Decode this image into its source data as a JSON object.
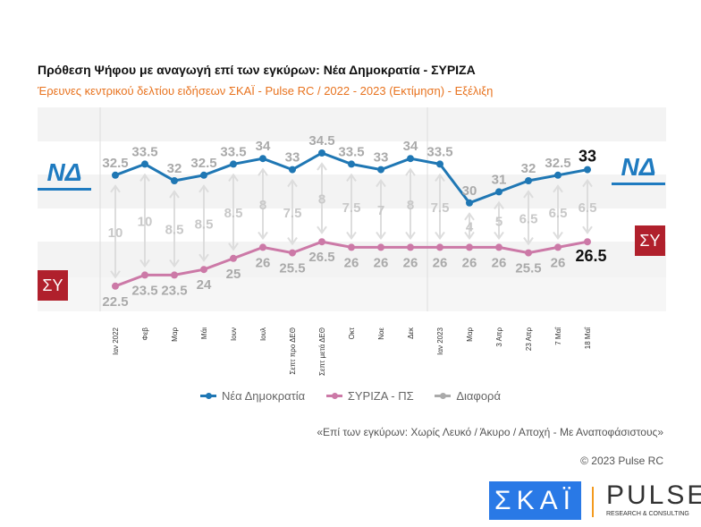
{
  "header": {
    "title": "Πρόθεση Ψήφου με αναγωγή επί των εγκύρων:  Νέα Δημοκρατία - ΣΥΡΙΖΑ",
    "subtitle": "Έρευνες κεντρικού δελτίου ειδήσεων ΣΚΑΪ - Pulse RC / 2022 - 2023   (Εκτίμηση) - Εξέλιξη"
  },
  "chart_data": {
    "type": "line",
    "title": "Πρόθεση Ψήφου με αναγωγή επί των εγκύρων:  Νέα Δημοκρατία - ΣΥΡΙΖΑ",
    "categories": [
      "Ιαν 2022",
      "Φεβ",
      "Μαρ",
      "Μάι",
      "Ιουν",
      "Ιουλ",
      "Σεπτ προ ΔΕΘ",
      "Σεπτ μετά ΔΕΘ",
      "Οκτ",
      "Νοε",
      "Δεκ",
      "Ιαν 2023",
      "Μαρ",
      "3 Απρ",
      "23 Απρ",
      "7 Μαΐ",
      "18 Μαΐ"
    ],
    "series": [
      {
        "name": "Νέα Δημοκρατία",
        "color": "#1f77b4",
        "values": [
          32.5,
          33.5,
          32,
          32.5,
          33.5,
          34,
          33,
          34.5,
          33.5,
          33,
          34,
          33.5,
          30,
          31,
          32,
          32.5,
          33
        ]
      },
      {
        "name": "ΣΥΡΙΖΑ - ΠΣ",
        "color": "#cc79a7",
        "values": [
          22.5,
          23.5,
          23.5,
          24,
          25,
          26,
          25.5,
          26.5,
          26,
          26,
          26,
          26,
          26,
          26,
          25.5,
          26,
          26.5
        ]
      },
      {
        "name": "Διαφορά",
        "color": "#bbbbbb",
        "values": [
          10,
          10,
          8.5,
          8.5,
          8.5,
          8,
          7.5,
          8,
          7.5,
          7,
          8,
          7.5,
          4,
          5,
          6.5,
          6.5,
          6.5
        ]
      }
    ],
    "ylim": [
      20,
      37
    ],
    "legend": "bottom"
  },
  "legend": [
    "Νέα Δημοκρατία",
    "ΣΥΡΙΖΑ - ΠΣ",
    "Διαφορά"
  ],
  "logos": {
    "nd": "ΝΔ",
    "syriza": "ΣΥ",
    "skai": "ΣΚΑΪ",
    "pulse": "PULSE",
    "pulse_sub": "RESEARCH & CONSULTING"
  },
  "footer": {
    "note": "«Επί των εγκύρων:  Χωρίς Λευκό / Άκυρο / Αποχή - Με Αναποφάσιστους»",
    "copyright": "© 2023 Pulse RC"
  }
}
